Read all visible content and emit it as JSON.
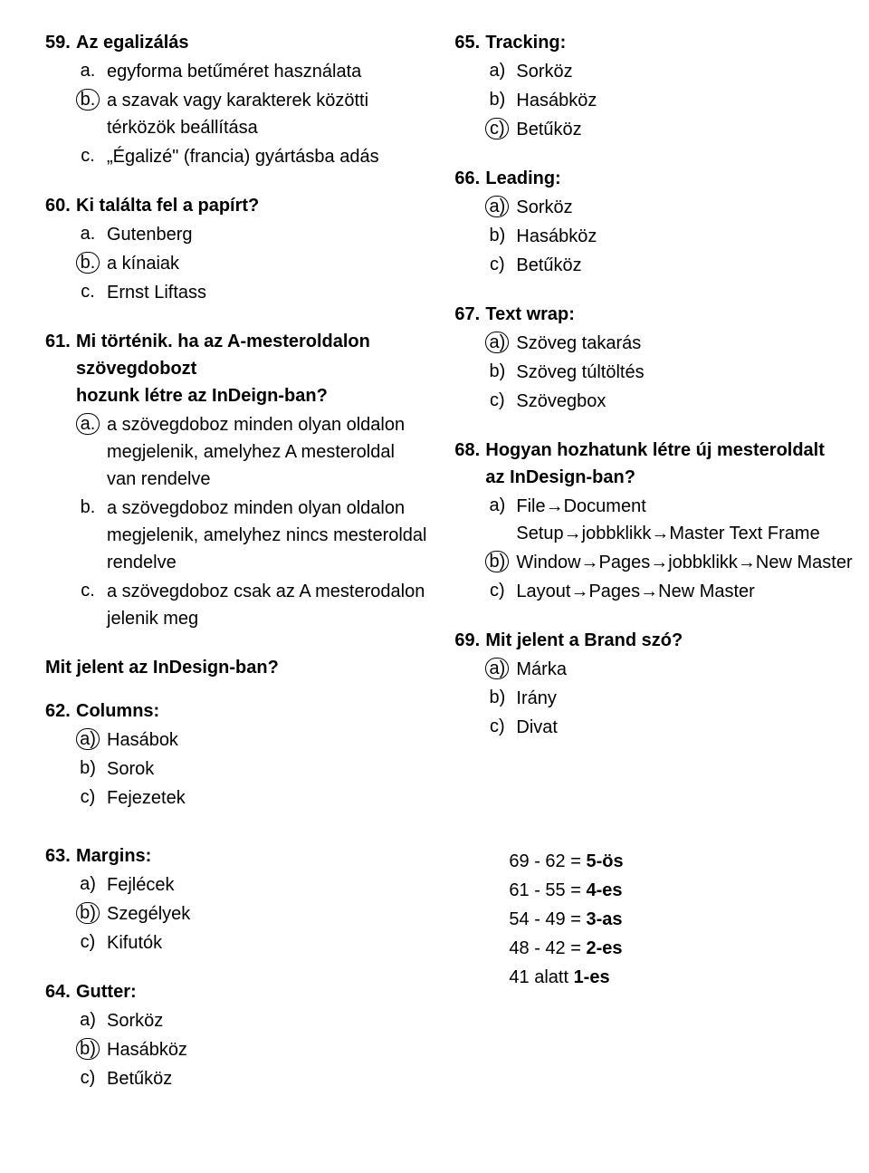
{
  "left_questions": [
    {
      "num": "59.",
      "title": "Az egalizálás",
      "options": [
        {
          "marker": "a.",
          "circled": false,
          "text": "egyforma betűméret használata"
        },
        {
          "marker": "b.",
          "circled": true,
          "text": "a szavak vagy karakterek közötti térközök beállítása"
        },
        {
          "marker": "c.",
          "circled": false,
          "text": "„Égalizé\" (francia) gyártásba adás"
        }
      ]
    },
    {
      "num": "60.",
      "title": "Ki találta fel a papírt?",
      "options": [
        {
          "marker": "a.",
          "circled": false,
          "text": "Gutenberg"
        },
        {
          "marker": "b.",
          "circled": true,
          "text": "a kínaiak"
        },
        {
          "marker": "c.",
          "circled": false,
          "text": "Ernst Liftass"
        }
      ]
    },
    {
      "num": "61.",
      "title": "Mi történik. ha az A-mesteroldalon szövegdobozt hozunk létre az InDeign-ban?",
      "title_cont": "hozunk létre az InDeign-ban?",
      "title_first": "Mi történik. ha az A-mesteroldalon szövegdobozt",
      "options": [
        {
          "marker": "a.",
          "circled": true,
          "text": "a szövegdoboz minden olyan oldalon megjelenik, amelyhez A mesteroldal van rendelve"
        },
        {
          "marker": "b.",
          "circled": false,
          "text": "a szövegdoboz minden olyan oldalon megjelenik, amelyhez nincs mesteroldal rendelve"
        },
        {
          "marker": "c.",
          "circled": false,
          "text": "a szövegdoboz csak az A mesterodalon jelenik meg"
        }
      ]
    }
  ],
  "left_section_title": "Mit jelent az InDesign-ban?",
  "left_questions_2": [
    {
      "num": "62.",
      "title": "Columns:",
      "options": [
        {
          "marker": "a)",
          "circled": true,
          "text": "Hasábok"
        },
        {
          "marker": "b)",
          "circled": false,
          "text": "Sorok"
        },
        {
          "marker": "c)",
          "circled": false,
          "text": "Fejezetek"
        }
      ]
    }
  ],
  "right_questions": [
    {
      "num": "65.",
      "title": "Tracking:",
      "options": [
        {
          "marker": "a)",
          "circled": false,
          "text": "Sorköz"
        },
        {
          "marker": "b)",
          "circled": false,
          "text": "Hasábköz"
        },
        {
          "marker": "c)",
          "circled": true,
          "text": "Betűköz"
        }
      ]
    },
    {
      "num": "66.",
      "title": "Leading:",
      "options": [
        {
          "marker": "a)",
          "circled": true,
          "text": "Sorköz"
        },
        {
          "marker": "b)",
          "circled": false,
          "text": "Hasábköz"
        },
        {
          "marker": "c)",
          "circled": false,
          "text": "Betűköz"
        }
      ]
    },
    {
      "num": "67.",
      "title": "Text wrap:",
      "options": [
        {
          "marker": "a)",
          "circled": true,
          "text": "Szöveg takarás"
        },
        {
          "marker": "b)",
          "circled": false,
          "text": "Szöveg túltöltés"
        },
        {
          "marker": "c)",
          "circled": false,
          "text": "Szövegbox"
        }
      ]
    },
    {
      "num": "68.",
      "title": "Hogyan hozhatunk létre új mesteroldalt az InDesign-ban?",
      "title_first": "Hogyan hozhatunk létre új mesteroldalt",
      "title_cont": "az InDesign-ban?",
      "options": [
        {
          "marker": "a)",
          "circled": false,
          "text": "File→Document Setup→jobbklikk→Master Text Frame"
        },
        {
          "marker": "b)",
          "circled": true,
          "text": "Window→Pages→jobbklikk→New Master"
        },
        {
          "marker": "c)",
          "circled": false,
          "text": "Layout→Pages→New Master"
        }
      ]
    },
    {
      "num": "69.",
      "title": "Mit jelent a Brand szó?",
      "options": [
        {
          "marker": "a)",
          "circled": true,
          "text": "Márka"
        },
        {
          "marker": "b)",
          "circled": false,
          "text": "Irány"
        },
        {
          "marker": "c)",
          "circled": false,
          "text": "Divat"
        }
      ]
    }
  ],
  "bottom_left_questions": [
    {
      "num": "63.",
      "title": "Margins:",
      "options": [
        {
          "marker": "a)",
          "circled": false,
          "text": "Fejlécek"
        },
        {
          "marker": "b)",
          "circled": true,
          "text": "Szegélyek"
        },
        {
          "marker": "c)",
          "circled": false,
          "text": "Kifutók"
        }
      ]
    },
    {
      "num": "64.",
      "title": "Gutter:",
      "options": [
        {
          "marker": "a)",
          "circled": false,
          "text": "Sorköz"
        },
        {
          "marker": "b)",
          "circled": true,
          "text": "Hasábköz"
        },
        {
          "marker": "c)",
          "circled": false,
          "text": "Betűköz"
        }
      ]
    }
  ],
  "grading": [
    {
      "range": "69 - 62 =",
      "grade": "5-ös"
    },
    {
      "range": "61 - 55 =",
      "grade": "4-es"
    },
    {
      "range": "54 - 49 =",
      "grade": "3-as"
    },
    {
      "range": "48 - 42 =",
      "grade": "2-es"
    },
    {
      "range": "41 alatt",
      "grade": "1-es"
    }
  ]
}
